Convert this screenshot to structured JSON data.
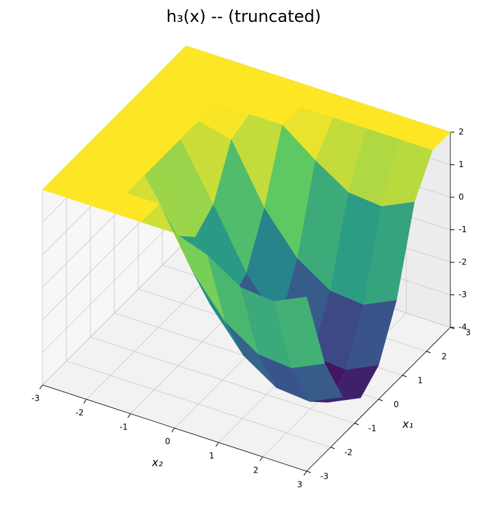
{
  "chart_data": {
    "type": "surface",
    "title": "h₃(x) -- (truncated)",
    "x_label": "x₂",
    "y_label": "x₁",
    "x": [
      -3,
      -2.25,
      -1.5,
      -0.75,
      0,
      0.75,
      1.5,
      2.25,
      3
    ],
    "y": [
      -3,
      -2.25,
      -1.5,
      -0.75,
      0,
      0.75,
      1.5,
      2.25,
      3
    ],
    "z": [
      [
        2,
        2,
        2,
        2,
        2,
        1.64,
        0.99,
        0.89,
        1.36
      ],
      [
        2,
        2,
        2,
        2,
        0.26,
        -0.96,
        -1.62,
        -1.71,
        -1.24
      ],
      [
        2,
        2,
        2,
        0.46,
        -1.32,
        -2.54,
        -3.2,
        -3.29,
        -2.82
      ],
      [
        2,
        2,
        2,
        -0.12,
        -1.9,
        -3.12,
        -3.78,
        -3.87,
        -3.4
      ],
      [
        2,
        2,
        2,
        0.32,
        -1.46,
        -2.68,
        -3.34,
        -3.43,
        -2.96
      ],
      [
        2,
        2,
        2,
        1.77,
        -0.01,
        -1.23,
        -1.89,
        -1.98,
        -1.51
      ],
      [
        2,
        2,
        2,
        2,
        2,
        1.24,
        0.59,
        0.49,
        0.96
      ],
      [
        2,
        2,
        2,
        2,
        2,
        2,
        2,
        2,
        2
      ],
      [
        2,
        2,
        2,
        2,
        2,
        2,
        2,
        2,
        2
      ]
    ],
    "colormap": "viridis",
    "xlim": [
      -3,
      3
    ],
    "xticks": [
      -3,
      -2,
      -1,
      0,
      1,
      2,
      3
    ],
    "ylim": [
      -3,
      3
    ],
    "yticks": [
      -3,
      -2,
      -1,
      0,
      1,
      2,
      3
    ],
    "zlim": [
      -4,
      2
    ],
    "zticks": [
      -4,
      -3,
      -2,
      -1,
      0,
      1,
      2
    ],
    "grid": true
  }
}
